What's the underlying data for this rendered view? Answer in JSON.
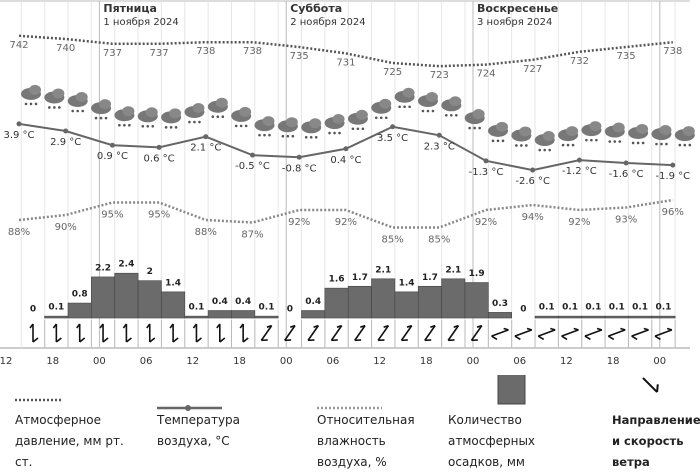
{
  "days": [
    {
      "name": "Пятница",
      "date": "1 ноября 2024"
    },
    {
      "name": "Суббота",
      "date": "2 ноября 2024"
    },
    {
      "name": "Воскресенье",
      "date": "3 ноября 2024"
    }
  ],
  "time_labels": [
    "12",
    "18",
    "00",
    "06",
    "12",
    "18",
    "00",
    "06",
    "12",
    "18",
    "00",
    "06",
    "12",
    "18",
    "00"
  ],
  "chart_data": [
    {
      "type": "line",
      "name": "Атмосферное давление, мм рт. ст.",
      "color": "#555555",
      "style": "dotted",
      "values": [
        742,
        740,
        737,
        737,
        738,
        738,
        735,
        731,
        725,
        723,
        724,
        727,
        732,
        735,
        738
      ],
      "ylim": [
        720,
        745
      ]
    },
    {
      "type": "line",
      "name": "Температура воздуха, °C",
      "color": "#666666",
      "style": "solid",
      "values": [
        3.9,
        2.9,
        0.9,
        0.6,
        2.1,
        -0.5,
        -0.8,
        0.4,
        3.5,
        2.3,
        -1.3,
        -2.6,
        -1.2,
        -1.6,
        -1.9
      ],
      "value_labels": [
        "3.9 °C",
        "2.9 °C",
        "0.9 °C",
        "0.6 °C",
        "2.1 °C",
        "-0.5 °C",
        "-0.8 °C",
        "0.4 °C",
        "3.5 °C",
        "2.3 °C",
        "-1.3 °C",
        "-2.6 °C",
        "-1.2 °C",
        "-1.6 °C",
        "-1.9 °C"
      ],
      "ylim": [
        -4,
        6
      ]
    },
    {
      "type": "line",
      "name": "Относительная влажность воздуха, %",
      "color": "#888888",
      "style": "dotted",
      "values": [
        88,
        90,
        95,
        95,
        88,
        87,
        92,
        92,
        85,
        85,
        92,
        94,
        92,
        93,
        96
      ],
      "value_labels": [
        "88%",
        "90%",
        "95%",
        "95%",
        "88%",
        "87%",
        "92%",
        "92%",
        "85%",
        "85%",
        "92%",
        "94%",
        "92%",
        "93%",
        "96%"
      ],
      "ylim": [
        80,
        100
      ]
    },
    {
      "type": "bar",
      "name": "Количество атмосферных осадков, мм",
      "color": "#6b6b6b",
      "values": [
        0,
        0.1,
        0.8,
        2.2,
        2.4,
        2,
        1.4,
        0.1,
        0.4,
        0.4,
        0.1,
        0,
        0.4,
        1.6,
        1.7,
        2.1,
        1.4,
        1.7,
        2.1,
        1.9,
        0.3,
        0,
        0.1,
        0.1,
        0.1,
        0.1,
        0.1,
        0.1
      ],
      "ylim": [
        0,
        3
      ]
    }
  ],
  "wind_legend": "Направление и скорость ветра"
}
